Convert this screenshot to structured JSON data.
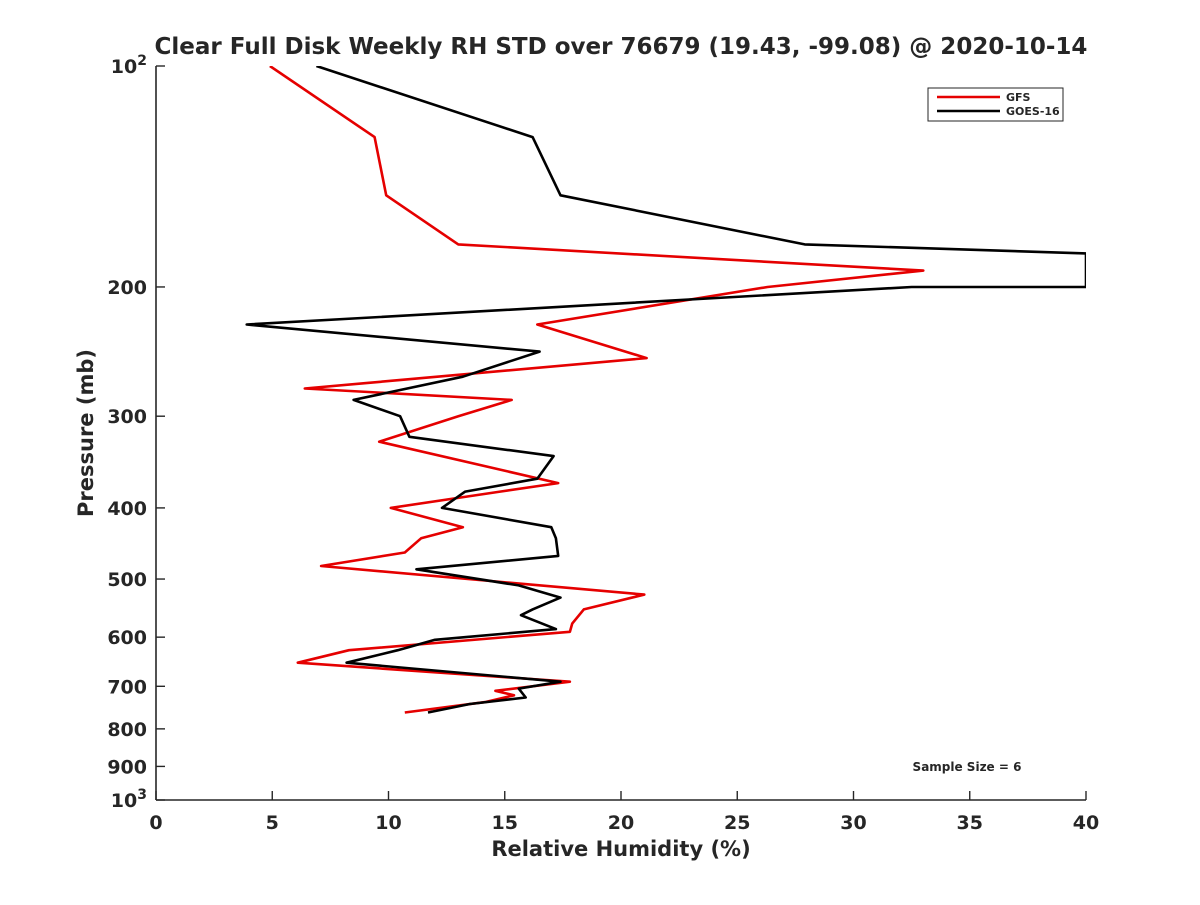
{
  "chart_data": {
    "type": "line",
    "title": "Clear Full Disk Weekly RH STD over 76679 (19.43, -99.08) @ 2020-10-14",
    "xlabel": "Relative Humidity (%)",
    "ylabel": "Pressure (mb)",
    "xlim": [
      0,
      40
    ],
    "ylim": [
      100,
      1000
    ],
    "y_scale": "log",
    "y_reversed": true,
    "grid": false,
    "legend_position": "top-right",
    "x_ticks": [
      "0",
      "5",
      "10",
      "15",
      "20",
      "25",
      "30",
      "35",
      "40"
    ],
    "y_ticks": [
      {
        "value": 100,
        "base": "10",
        "exp": "2"
      },
      {
        "value": 200,
        "label": "200"
      },
      {
        "value": 300,
        "label": "300"
      },
      {
        "value": 400,
        "label": "400"
      },
      {
        "value": 500,
        "label": "500"
      },
      {
        "value": 600,
        "label": "600"
      },
      {
        "value": 700,
        "label": "700"
      },
      {
        "value": 800,
        "label": "800"
      },
      {
        "value": 900,
        "label": "900"
      },
      {
        "value": 1000,
        "base": "10",
        "exp": "3"
      }
    ],
    "annotation": "Sample Size = 6",
    "series": [
      {
        "name": "GFS",
        "color": "#e50000",
        "points": [
          [
            4.9,
            100
          ],
          [
            9.4,
            125
          ],
          [
            9.9,
            150
          ],
          [
            13.0,
            175
          ],
          [
            33.0,
            190
          ],
          [
            26.3,
            200
          ],
          [
            16.4,
            225
          ],
          [
            21.1,
            250
          ],
          [
            6.4,
            275
          ],
          [
            15.3,
            285
          ],
          [
            13.0,
            300
          ],
          [
            9.6,
            325
          ],
          [
            17.3,
            370
          ],
          [
            14.8,
            380
          ],
          [
            10.1,
            400
          ],
          [
            13.2,
            425
          ],
          [
            11.4,
            440
          ],
          [
            10.7,
            460
          ],
          [
            7.1,
            480
          ],
          [
            21.0,
            525
          ],
          [
            18.4,
            550
          ],
          [
            17.9,
            575
          ],
          [
            17.8,
            590
          ],
          [
            8.3,
            625
          ],
          [
            6.1,
            650
          ],
          [
            17.8,
            690
          ],
          [
            14.6,
            710
          ],
          [
            15.4,
            720
          ],
          [
            14.2,
            735
          ],
          [
            10.7,
            760
          ]
        ]
      },
      {
        "name": "GOES-16",
        "color": "#000000",
        "points": [
          [
            6.9,
            100
          ],
          [
            16.2,
            125
          ],
          [
            17.4,
            150
          ],
          [
            27.9,
            175
          ],
          [
            40.0,
            180
          ],
          [
            40.0,
            200
          ],
          [
            32.5,
            200
          ],
          [
            3.9,
            225
          ],
          [
            16.5,
            245
          ],
          [
            13.2,
            265
          ],
          [
            8.5,
            285
          ],
          [
            10.5,
            300
          ],
          [
            10.9,
            320
          ],
          [
            17.1,
            340
          ],
          [
            16.4,
            365
          ],
          [
            13.3,
            380
          ],
          [
            12.3,
            400
          ],
          [
            17.0,
            425
          ],
          [
            17.2,
            440
          ],
          [
            17.3,
            465
          ],
          [
            11.2,
            485
          ],
          [
            15.6,
            510
          ],
          [
            17.4,
            530
          ],
          [
            16.2,
            550
          ],
          [
            15.7,
            560
          ],
          [
            17.2,
            585
          ],
          [
            12.0,
            605
          ],
          [
            10.4,
            625
          ],
          [
            8.2,
            650
          ],
          [
            17.4,
            690
          ],
          [
            15.6,
            705
          ],
          [
            15.9,
            725
          ],
          [
            13.5,
            740
          ],
          [
            11.7,
            760
          ]
        ]
      }
    ]
  }
}
